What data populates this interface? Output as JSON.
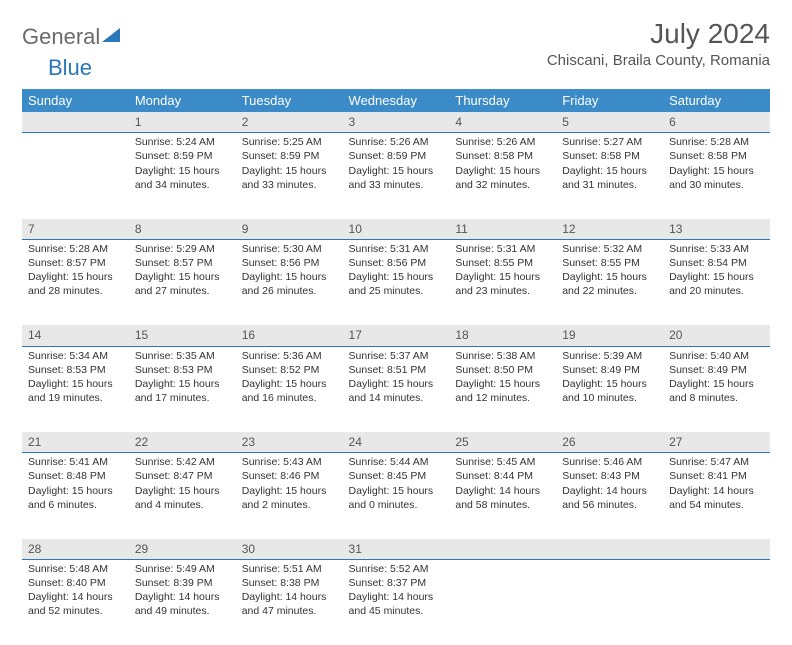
{
  "logo": {
    "part1": "General",
    "part2": "Blue"
  },
  "title": {
    "month_year": "July 2024",
    "location": "Chiscani, Braila County, Romania"
  },
  "colors": {
    "header_bg": "#3b8bc9",
    "daynum_bg": "#e8e8e8",
    "border": "#2a77bb"
  },
  "day_headers": [
    "Sunday",
    "Monday",
    "Tuesday",
    "Wednesday",
    "Thursday",
    "Friday",
    "Saturday"
  ],
  "weeks": [
    {
      "nums": [
        "",
        "1",
        "2",
        "3",
        "4",
        "5",
        "6"
      ],
      "cells": [
        null,
        {
          "sunrise": "Sunrise: 5:24 AM",
          "sunset": "Sunset: 8:59 PM",
          "daylight": "Daylight: 15 hours and 34 minutes."
        },
        {
          "sunrise": "Sunrise: 5:25 AM",
          "sunset": "Sunset: 8:59 PM",
          "daylight": "Daylight: 15 hours and 33 minutes."
        },
        {
          "sunrise": "Sunrise: 5:26 AM",
          "sunset": "Sunset: 8:59 PM",
          "daylight": "Daylight: 15 hours and 33 minutes."
        },
        {
          "sunrise": "Sunrise: 5:26 AM",
          "sunset": "Sunset: 8:58 PM",
          "daylight": "Daylight: 15 hours and 32 minutes."
        },
        {
          "sunrise": "Sunrise: 5:27 AM",
          "sunset": "Sunset: 8:58 PM",
          "daylight": "Daylight: 15 hours and 31 minutes."
        },
        {
          "sunrise": "Sunrise: 5:28 AM",
          "sunset": "Sunset: 8:58 PM",
          "daylight": "Daylight: 15 hours and 30 minutes."
        }
      ]
    },
    {
      "nums": [
        "7",
        "8",
        "9",
        "10",
        "11",
        "12",
        "13"
      ],
      "cells": [
        {
          "sunrise": "Sunrise: 5:28 AM",
          "sunset": "Sunset: 8:57 PM",
          "daylight": "Daylight: 15 hours and 28 minutes."
        },
        {
          "sunrise": "Sunrise: 5:29 AM",
          "sunset": "Sunset: 8:57 PM",
          "daylight": "Daylight: 15 hours and 27 minutes."
        },
        {
          "sunrise": "Sunrise: 5:30 AM",
          "sunset": "Sunset: 8:56 PM",
          "daylight": "Daylight: 15 hours and 26 minutes."
        },
        {
          "sunrise": "Sunrise: 5:31 AM",
          "sunset": "Sunset: 8:56 PM",
          "daylight": "Daylight: 15 hours and 25 minutes."
        },
        {
          "sunrise": "Sunrise: 5:31 AM",
          "sunset": "Sunset: 8:55 PM",
          "daylight": "Daylight: 15 hours and 23 minutes."
        },
        {
          "sunrise": "Sunrise: 5:32 AM",
          "sunset": "Sunset: 8:55 PM",
          "daylight": "Daylight: 15 hours and 22 minutes."
        },
        {
          "sunrise": "Sunrise: 5:33 AM",
          "sunset": "Sunset: 8:54 PM",
          "daylight": "Daylight: 15 hours and 20 minutes."
        }
      ]
    },
    {
      "nums": [
        "14",
        "15",
        "16",
        "17",
        "18",
        "19",
        "20"
      ],
      "cells": [
        {
          "sunrise": "Sunrise: 5:34 AM",
          "sunset": "Sunset: 8:53 PM",
          "daylight": "Daylight: 15 hours and 19 minutes."
        },
        {
          "sunrise": "Sunrise: 5:35 AM",
          "sunset": "Sunset: 8:53 PM",
          "daylight": "Daylight: 15 hours and 17 minutes."
        },
        {
          "sunrise": "Sunrise: 5:36 AM",
          "sunset": "Sunset: 8:52 PM",
          "daylight": "Daylight: 15 hours and 16 minutes."
        },
        {
          "sunrise": "Sunrise: 5:37 AM",
          "sunset": "Sunset: 8:51 PM",
          "daylight": "Daylight: 15 hours and 14 minutes."
        },
        {
          "sunrise": "Sunrise: 5:38 AM",
          "sunset": "Sunset: 8:50 PM",
          "daylight": "Daylight: 15 hours and 12 minutes."
        },
        {
          "sunrise": "Sunrise: 5:39 AM",
          "sunset": "Sunset: 8:49 PM",
          "daylight": "Daylight: 15 hours and 10 minutes."
        },
        {
          "sunrise": "Sunrise: 5:40 AM",
          "sunset": "Sunset: 8:49 PM",
          "daylight": "Daylight: 15 hours and 8 minutes."
        }
      ]
    },
    {
      "nums": [
        "21",
        "22",
        "23",
        "24",
        "25",
        "26",
        "27"
      ],
      "cells": [
        {
          "sunrise": "Sunrise: 5:41 AM",
          "sunset": "Sunset: 8:48 PM",
          "daylight": "Daylight: 15 hours and 6 minutes."
        },
        {
          "sunrise": "Sunrise: 5:42 AM",
          "sunset": "Sunset: 8:47 PM",
          "daylight": "Daylight: 15 hours and 4 minutes."
        },
        {
          "sunrise": "Sunrise: 5:43 AM",
          "sunset": "Sunset: 8:46 PM",
          "daylight": "Daylight: 15 hours and 2 minutes."
        },
        {
          "sunrise": "Sunrise: 5:44 AM",
          "sunset": "Sunset: 8:45 PM",
          "daylight": "Daylight: 15 hours and 0 minutes."
        },
        {
          "sunrise": "Sunrise: 5:45 AM",
          "sunset": "Sunset: 8:44 PM",
          "daylight": "Daylight: 14 hours and 58 minutes."
        },
        {
          "sunrise": "Sunrise: 5:46 AM",
          "sunset": "Sunset: 8:43 PM",
          "daylight": "Daylight: 14 hours and 56 minutes."
        },
        {
          "sunrise": "Sunrise: 5:47 AM",
          "sunset": "Sunset: 8:41 PM",
          "daylight": "Daylight: 14 hours and 54 minutes."
        }
      ]
    },
    {
      "nums": [
        "28",
        "29",
        "30",
        "31",
        "",
        "",
        ""
      ],
      "cells": [
        {
          "sunrise": "Sunrise: 5:48 AM",
          "sunset": "Sunset: 8:40 PM",
          "daylight": "Daylight: 14 hours and 52 minutes."
        },
        {
          "sunrise": "Sunrise: 5:49 AM",
          "sunset": "Sunset: 8:39 PM",
          "daylight": "Daylight: 14 hours and 49 minutes."
        },
        {
          "sunrise": "Sunrise: 5:51 AM",
          "sunset": "Sunset: 8:38 PM",
          "daylight": "Daylight: 14 hours and 47 minutes."
        },
        {
          "sunrise": "Sunrise: 5:52 AM",
          "sunset": "Sunset: 8:37 PM",
          "daylight": "Daylight: 14 hours and 45 minutes."
        },
        null,
        null,
        null
      ]
    }
  ]
}
